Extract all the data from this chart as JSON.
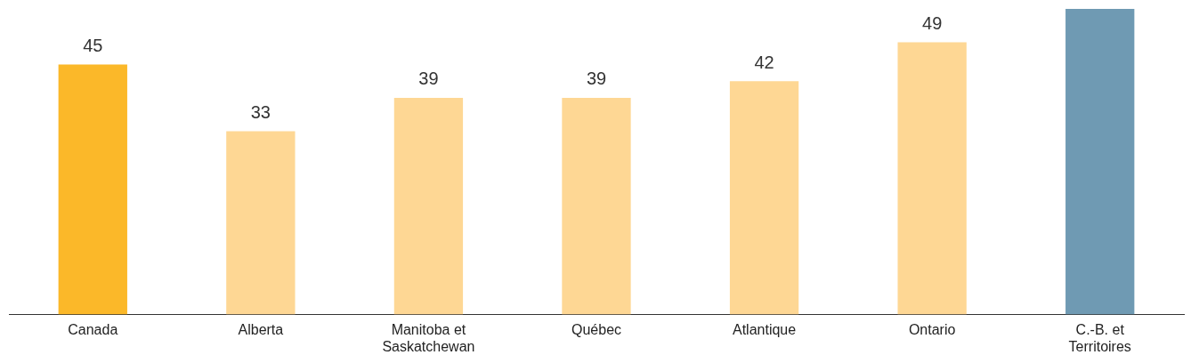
{
  "chart_data": {
    "type": "bar",
    "categories": [
      "Canada",
      "Alberta",
      "Manitoba et Saskatchewan",
      "Québec",
      "Atlantique",
      "Ontario",
      "C.-B. et Territoires"
    ],
    "values": [
      45,
      33,
      39,
      39,
      42,
      49,
      55
    ],
    "colors": [
      "#fbb829",
      "#fed794",
      "#fed794",
      "#fed794",
      "#fed794",
      "#fed794",
      "#6f9ab3"
    ],
    "value_labels": [
      "45",
      "33",
      "39",
      "39",
      "42",
      "49",
      null
    ],
    "grid": false,
    "legend": false
  }
}
